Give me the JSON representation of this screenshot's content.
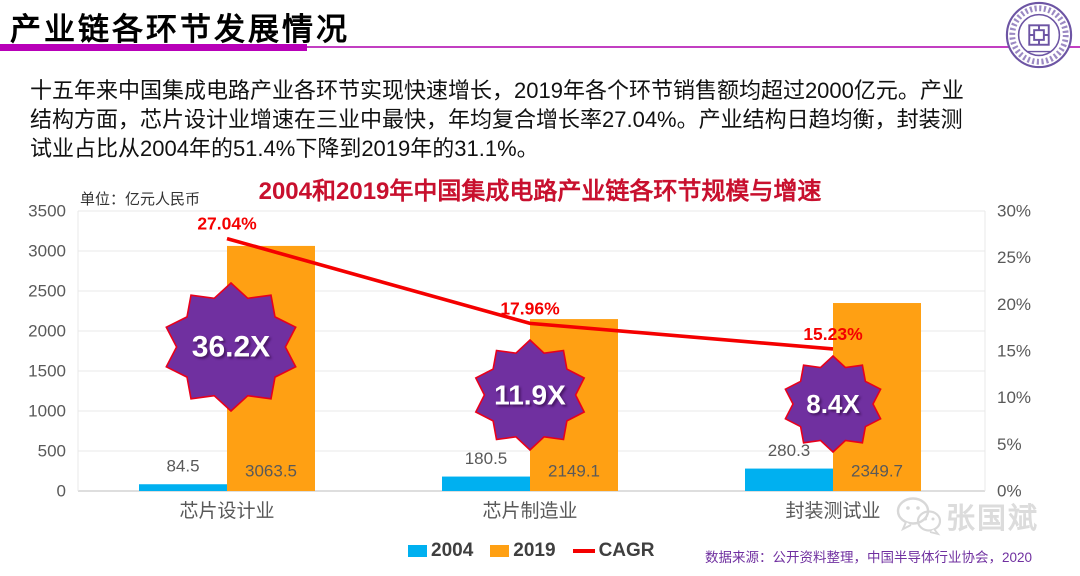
{
  "header": {
    "title": "产业链各环节发展情况",
    "logo_icon": "university-seal-icon"
  },
  "intro": {
    "lines": [
      "十五年来中国集成电路产业各环节实现快速增长，2019年各个环节销售额均超过2000亿元。产业",
      "结构方面，芯片设计业增速在三业中最快，年均复合增长率27.04%。产业结构日趋均衡，封装测",
      "试业占比从2004年的51.4%下降到2019年的31.1%。"
    ]
  },
  "chart_data": {
    "type": "bar",
    "title": "2004和2019年中国集成电路产业链各环节规模与增速",
    "unit_label": "单位：亿元人民币",
    "categories": [
      "芯片设计业",
      "芯片制造业",
      "封装测试业"
    ],
    "series": [
      {
        "name": "2004",
        "type": "bar",
        "color": "#00b0f0",
        "values": [
          84.5,
          180.5,
          280.3
        ]
      },
      {
        "name": "2019",
        "type": "bar",
        "color": "#ffa013",
        "values": [
          3063.5,
          2149.1,
          2349.7
        ]
      },
      {
        "name": "CAGR",
        "type": "line",
        "color": "#f40000",
        "values_pct": [
          27.04,
          17.96,
          15.23
        ],
        "point_labels": [
          "27.04%",
          "17.96%",
          "15.23%"
        ]
      }
    ],
    "multipliers": [
      "36.2X",
      "11.9X",
      "8.4X"
    ],
    "left_axis": {
      "min": 0,
      "max": 3500,
      "step": 500,
      "ticks": [
        "3500",
        "3000",
        "2500",
        "2000",
        "1500",
        "1000",
        "500",
        "0"
      ]
    },
    "right_axis": {
      "min": 0,
      "max": 30,
      "step": 5,
      "ticks": [
        "30%",
        "25%",
        "20%",
        "15%",
        "10%",
        "5%",
        "0%"
      ]
    },
    "grid": "horizontal-major",
    "legend_position": "bottom"
  },
  "footer": {
    "source": "数据来源：公开资料整理，中国半导体行业协会，2020",
    "watermark": "张国斌",
    "watermark_icon": "wechat-icon"
  },
  "colors": {
    "title_underline": "#b800b8",
    "chart_title_red": "#c8102e",
    "bar_2004_blue": "#00b0f0",
    "bar_2019_orange": "#ffa013",
    "cagr_line_red": "#f40000",
    "star_purple": "#7030a0",
    "star_outline": "#e8001c",
    "source_purple": "#7030a0",
    "axis_gray": "#595959"
  }
}
